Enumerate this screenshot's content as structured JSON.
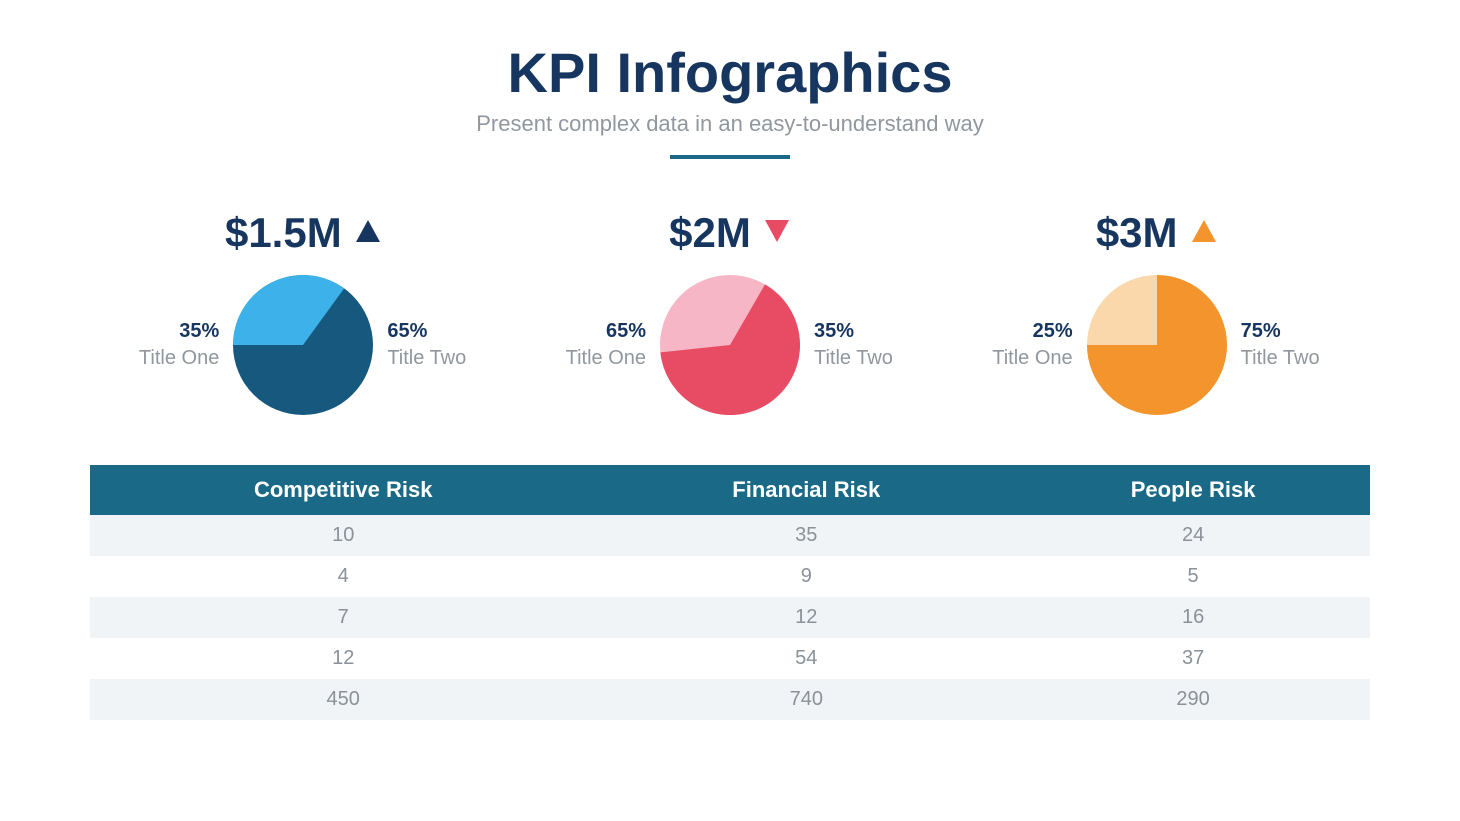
{
  "header": {
    "title": "KPI Infographics",
    "title_color": "#17365f",
    "title_fontsize": 56,
    "subtitle": "Present complex data in an easy-to-understand way",
    "subtitle_color": "#90979e",
    "subtitle_fontsize": 22,
    "underline_color": "#1a6a87",
    "underline_width": 120,
    "underline_height": 4
  },
  "kpis": [
    {
      "value": "$1.5M",
      "value_color": "#17365f",
      "value_fontsize": 42,
      "trend": "up",
      "trend_color": "#17365f",
      "pie": {
        "size": 140,
        "slice1_percent": 35,
        "slice2_percent": 65,
        "slice1_color": "#3db2ea",
        "slice2_color": "#17597e",
        "slice1_start_deg": -90,
        "label_left_pct": "35%",
        "label_left_title": "Title One",
        "label_right_pct": "65%",
        "label_right_title": "Title Two",
        "pct_color": "#17365f",
        "pct_fontsize": 20,
        "title_color": "#90979e",
        "title_fontsize": 20
      }
    },
    {
      "value": "$2M",
      "value_color": "#17365f",
      "value_fontsize": 42,
      "trend": "down",
      "trend_color": "#e84c64",
      "pie": {
        "size": 140,
        "slice1_percent": 65,
        "slice2_percent": 35,
        "slice1_color": "#e84c64",
        "slice2_color": "#f7b6c5",
        "slice1_start_deg": 30,
        "label_left_pct": "65%",
        "label_left_title": "Title One",
        "label_right_pct": "35%",
        "label_right_title": "Title Two",
        "pct_color": "#17365f",
        "pct_fontsize": 20,
        "title_color": "#90979e",
        "title_fontsize": 20
      }
    },
    {
      "value": "$3M",
      "value_color": "#17365f",
      "value_fontsize": 42,
      "trend": "up",
      "trend_color": "#f3942d",
      "pie": {
        "size": 140,
        "slice1_percent": 75,
        "slice2_percent": 25,
        "slice1_color": "#f3942d",
        "slice2_color": "#fbd7ac",
        "slice1_start_deg": 0,
        "label_left_pct": "25%",
        "label_left_title": "Title One",
        "label_right_pct": "75%",
        "label_right_title": "Title Two",
        "pct_color": "#17365f",
        "pct_fontsize": 20,
        "title_color": "#90979e",
        "title_fontsize": 20
      }
    }
  ],
  "table": {
    "header_bg": "#1a6a87",
    "header_color": "#ffffff",
    "header_fontsize": 22,
    "row_odd_bg": "#f1f4f6",
    "row_even_bg": "#ffffff",
    "cell_color": "#8a9199",
    "cell_fontsize": 20,
    "columns": [
      "Competitive Risk",
      "Financial Risk",
      "People Risk"
    ],
    "rows": [
      [
        "10",
        "35",
        "24"
      ],
      [
        "4",
        "9",
        "5"
      ],
      [
        "7",
        "12",
        "16"
      ],
      [
        "12",
        "54",
        "37"
      ],
      [
        "450",
        "740",
        "290"
      ]
    ]
  }
}
